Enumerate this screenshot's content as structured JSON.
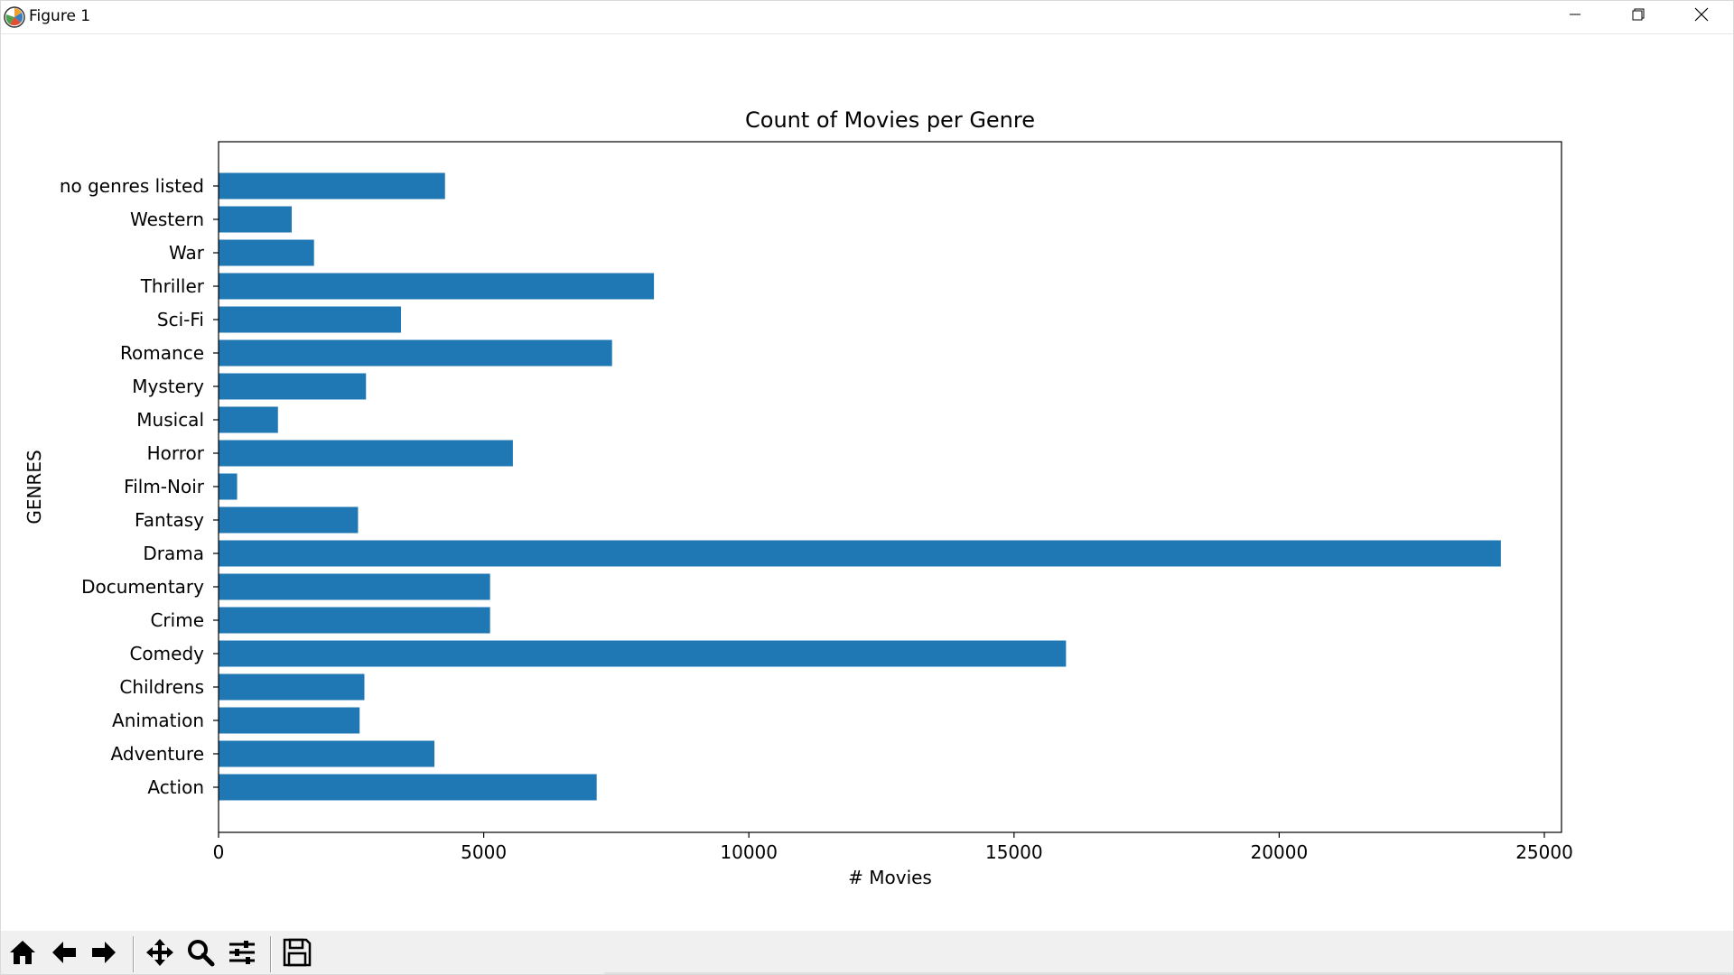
{
  "window": {
    "title": "Figure 1",
    "minimize_icon": "minimize-icon",
    "maximize_icon": "restore-icon",
    "close_icon": "close-icon"
  },
  "toolbar": {
    "buttons": [
      {
        "name": "home",
        "icon": "home-icon"
      },
      {
        "name": "back",
        "icon": "arrow-left-icon"
      },
      {
        "name": "forward",
        "icon": "arrow-right-icon"
      },
      {
        "name": "pan",
        "icon": "move-icon"
      },
      {
        "name": "zoom",
        "icon": "magnifier-icon"
      },
      {
        "name": "configure-subplots",
        "icon": "sliders-icon"
      },
      {
        "name": "save",
        "icon": "floppy-disk-icon"
      }
    ]
  },
  "chart_data": {
    "type": "bar",
    "orientation": "horizontal",
    "title": "Count of Movies per Genre",
    "xlabel": "# Movies",
    "ylabel": "GENRES",
    "xlim": [
      0,
      25400
    ],
    "xticks": [
      0,
      5000,
      10000,
      15000,
      20000,
      25000
    ],
    "grid": false,
    "bar_color": "#1f77b4",
    "categories": [
      "Action",
      "Adventure",
      "Animation",
      "Childrens",
      "Comedy",
      "Crime",
      "Documentary",
      "Drama",
      "Fantasy",
      "Film-Noir",
      "Horror",
      "Musical",
      "Mystery",
      "Romance",
      "Sci-Fi",
      "Thriller",
      "War",
      "Western",
      "no genres listed"
    ],
    "values": [
      7130,
      4070,
      2660,
      2750,
      15980,
      5120,
      5120,
      24180,
      2630,
      350,
      5550,
      1120,
      2780,
      7420,
      3440,
      8210,
      1800,
      1380,
      4270
    ]
  }
}
